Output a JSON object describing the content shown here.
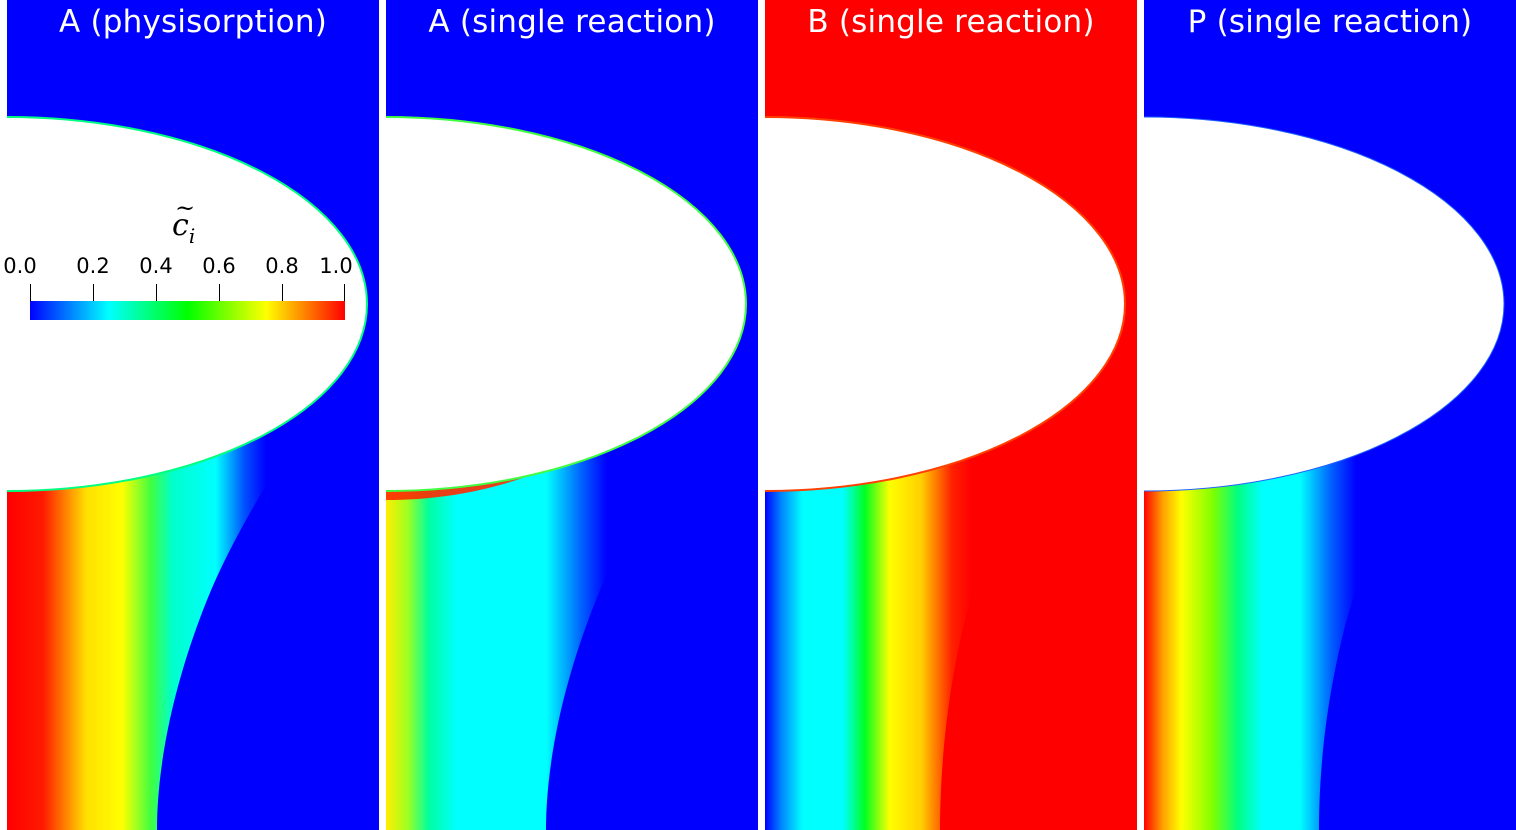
{
  "panels": [
    {
      "title": "A (physisorption)",
      "field": "A_phys"
    },
    {
      "title": "A (single reaction)",
      "field": "A_single"
    },
    {
      "title": "B (single reaction)",
      "field": "B_single"
    },
    {
      "title": "P (single reaction)",
      "field": "P_single"
    }
  ],
  "colorbar": {
    "symbol": "c",
    "tilde": "~",
    "subscript": "i",
    "ticks": [
      "0.0",
      "0.2",
      "0.4",
      "0.6",
      "0.8",
      "1.0"
    ],
    "colormap": [
      "#0000ff",
      "#00ffff",
      "#00ff00",
      "#ffff00",
      "#ff0000"
    ]
  },
  "colors": {
    "low": "#0000ff",
    "high": "#ff0000",
    "background": "#ffffff"
  }
}
